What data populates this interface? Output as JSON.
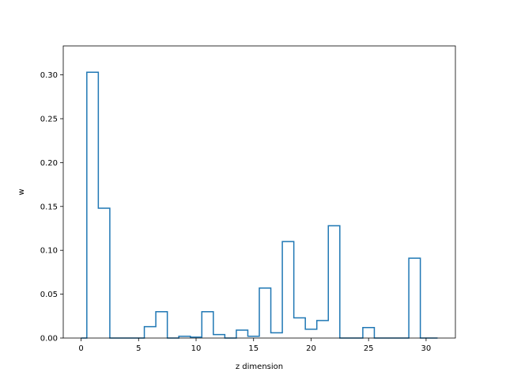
{
  "chart_data": {
    "type": "histogram-step",
    "title": "",
    "xlabel": "z dimension",
    "ylabel": "w",
    "xlim": [
      -1.55,
      32.55
    ],
    "ylim": [
      0,
      0.333
    ],
    "x_ticks": [
      0,
      5,
      10,
      15,
      20,
      25,
      30
    ],
    "y_ticks": [
      0.0,
      0.05,
      0.1,
      0.15,
      0.2,
      0.25,
      0.3
    ],
    "x_tick_labels": [
      "0",
      "5",
      "10",
      "15",
      "20",
      "25",
      "30"
    ],
    "y_tick_labels": [
      "0.00",
      "0.05",
      "0.10",
      "0.15",
      "0.20",
      "0.25",
      "0.30"
    ],
    "bin_edges": [
      0,
      0.5,
      1.5,
      2.5,
      3.5,
      4.5,
      5.5,
      6.5,
      7.5,
      8.5,
      9.5,
      10.5,
      11.5,
      12.5,
      13.5,
      14.5,
      15.5,
      16.5,
      17.5,
      18.5,
      19.5,
      20.5,
      21.5,
      22.5,
      23.5,
      24.5,
      25.5,
      26.5,
      27.5,
      28.5,
      29.5,
      31
    ],
    "values": [
      0.0,
      0.303,
      0.148,
      0.0,
      0.0,
      0.0,
      0.013,
      0.03,
      0.0,
      0.002,
      0.001,
      0.03,
      0.004,
      0.0,
      0.009,
      0.002,
      0.057,
      0.006,
      0.11,
      0.023,
      0.01,
      0.02,
      0.128,
      0.0,
      0.0,
      0.012,
      0.0,
      0.0,
      0.0,
      0.091,
      0.0
    ],
    "line_color": "#1f77b4",
    "grid": false
  }
}
